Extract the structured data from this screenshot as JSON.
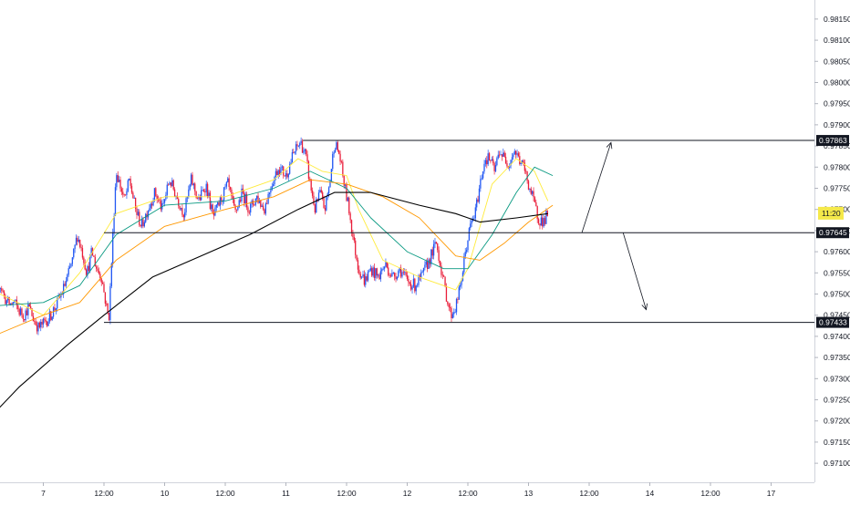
{
  "chart_data": {
    "type": "candlestick",
    "colors": {
      "up": "#2157f3",
      "down": "#e91e3a",
      "ma_fast": "#ffeb3b",
      "ma_mid": "#089981",
      "ma_slow": "#ff9800",
      "ma_long": "#000000",
      "label_bg": "#131722",
      "price_badge": "#f5e94a"
    },
    "y_axis": {
      "ylim": [
        0.97055,
        0.98195
      ],
      "ticks": [
        "0.98150",
        "0.98100",
        "0.98050",
        "0.98000",
        "0.97950",
        "0.97900",
        "0.97850",
        "0.97800",
        "0.97750",
        "0.97700",
        "0.97650",
        "0.97600",
        "0.97550",
        "0.97500",
        "0.97450",
        "0.97400",
        "0.97350",
        "0.97300",
        "0.97250",
        "0.97200",
        "0.97150",
        "0.97100"
      ]
    },
    "x_axis": {
      "ticks": [
        {
          "label": "7",
          "t": 0.5
        },
        {
          "label": "12:00",
          "t": 1.0
        },
        {
          "label": "10",
          "t": 1.5
        },
        {
          "label": "12:00",
          "t": 2.0
        },
        {
          "label": "11",
          "t": 2.5
        },
        {
          "label": "12:00",
          "t": 3.0
        },
        {
          "label": "12",
          "t": 3.5
        },
        {
          "label": "12:00",
          "t": 4.0
        },
        {
          "label": "13",
          "t": 4.5
        },
        {
          "label": "12:00",
          "t": 5.0
        },
        {
          "label": "14",
          "t": 5.5
        },
        {
          "label": "12:00",
          "t": 6.0
        },
        {
          "label": "17",
          "t": 6.5
        }
      ]
    },
    "levels": [
      {
        "price": 0.97863,
        "label": "0.97863",
        "t_start": 2.64
      },
      {
        "price": 0.97645,
        "label": "0.97645",
        "t_start": 1.0
      },
      {
        "price": 0.97433,
        "label": "0.97433",
        "t_start": 1.0
      }
    ],
    "current_price_label": "11:20",
    "current_price": 0.97691,
    "projections": [
      {
        "from_t": 4.94,
        "from_p": 0.97645,
        "to_t": 5.18,
        "to_p": 0.97858
      },
      {
        "from_t": 5.28,
        "from_p": 0.97645,
        "to_t": 5.47,
        "to_p": 0.97463
      }
    ],
    "anchors": [
      {
        "t": 0.0,
        "p": 0.9752
      },
      {
        "t": 0.03,
        "p": 0.9756
      },
      {
        "t": 0.06,
        "p": 0.97545
      },
      {
        "t": 0.09,
        "p": 0.97565
      },
      {
        "t": 0.12,
        "p": 0.9753
      },
      {
        "t": 0.15,
        "p": 0.9752
      },
      {
        "t": 0.18,
        "p": 0.9749
      },
      {
        "t": 0.22,
        "p": 0.97475
      },
      {
        "t": 0.26,
        "p": 0.9748
      },
      {
        "t": 0.3,
        "p": 0.9746
      },
      {
        "t": 0.34,
        "p": 0.9745
      },
      {
        "t": 0.38,
        "p": 0.9747
      },
      {
        "t": 0.42,
        "p": 0.9744
      },
      {
        "t": 0.46,
        "p": 0.9742
      },
      {
        "t": 0.5,
        "p": 0.9743
      },
      {
        "t": 0.55,
        "p": 0.97445
      },
      {
        "t": 0.6,
        "p": 0.9747
      },
      {
        "t": 0.65,
        "p": 0.975
      },
      {
        "t": 0.7,
        "p": 0.9754
      },
      {
        "t": 0.74,
        "p": 0.9758
      },
      {
        "t": 0.78,
        "p": 0.9764
      },
      {
        "t": 0.82,
        "p": 0.976
      },
      {
        "t": 0.86,
        "p": 0.9755
      },
      {
        "t": 0.9,
        "p": 0.976
      },
      {
        "t": 0.94,
        "p": 0.9756
      },
      {
        "t": 0.98,
        "p": 0.9754
      },
      {
        "t": 1.02,
        "p": 0.9747
      },
      {
        "t": 1.04,
        "p": 0.9744
      },
      {
        "t": 1.06,
        "p": 0.9756
      },
      {
        "t": 1.08,
        "p": 0.9768
      },
      {
        "t": 1.1,
        "p": 0.9779
      },
      {
        "t": 1.13,
        "p": 0.9776
      },
      {
        "t": 1.17,
        "p": 0.9772
      },
      {
        "t": 1.21,
        "p": 0.9777
      },
      {
        "t": 1.26,
        "p": 0.977
      },
      {
        "t": 1.31,
        "p": 0.9766
      },
      {
        "t": 1.36,
        "p": 0.977
      },
      {
        "t": 1.42,
        "p": 0.9774
      },
      {
        "t": 1.48,
        "p": 0.977
      },
      {
        "t": 1.54,
        "p": 0.9777
      },
      {
        "t": 1.6,
        "p": 0.9773
      },
      {
        "t": 1.66,
        "p": 0.9769
      },
      {
        "t": 1.72,
        "p": 0.9777
      },
      {
        "t": 1.78,
        "p": 0.9772
      },
      {
        "t": 1.84,
        "p": 0.9776
      },
      {
        "t": 1.9,
        "p": 0.9768
      },
      {
        "t": 1.96,
        "p": 0.9772
      },
      {
        "t": 2.02,
        "p": 0.9776
      },
      {
        "t": 2.08,
        "p": 0.9769
      },
      {
        "t": 2.14,
        "p": 0.9774
      },
      {
        "t": 2.2,
        "p": 0.977
      },
      {
        "t": 2.26,
        "p": 0.9773
      },
      {
        "t": 2.32,
        "p": 0.977
      },
      {
        "t": 2.38,
        "p": 0.9776
      },
      {
        "t": 2.44,
        "p": 0.978
      },
      {
        "t": 2.5,
        "p": 0.9778
      },
      {
        "t": 2.56,
        "p": 0.9783
      },
      {
        "t": 2.62,
        "p": 0.9786
      },
      {
        "t": 2.66,
        "p": 0.9783
      },
      {
        "t": 2.7,
        "p": 0.9776
      },
      {
        "t": 2.74,
        "p": 0.977
      },
      {
        "t": 2.78,
        "p": 0.9774
      },
      {
        "t": 2.82,
        "p": 0.977
      },
      {
        "t": 2.86,
        "p": 0.9776
      },
      {
        "t": 2.9,
        "p": 0.9786
      },
      {
        "t": 2.94,
        "p": 0.9783
      },
      {
        "t": 2.98,
        "p": 0.9776
      },
      {
        "t": 3.02,
        "p": 0.977
      },
      {
        "t": 3.06,
        "p": 0.9762
      },
      {
        "t": 3.1,
        "p": 0.9756
      },
      {
        "t": 3.15,
        "p": 0.9753
      },
      {
        "t": 3.2,
        "p": 0.9756
      },
      {
        "t": 3.26,
        "p": 0.9754
      },
      {
        "t": 3.32,
        "p": 0.9757
      },
      {
        "t": 3.38,
        "p": 0.9754
      },
      {
        "t": 3.44,
        "p": 0.9756
      },
      {
        "t": 3.5,
        "p": 0.9753
      },
      {
        "t": 3.56,
        "p": 0.9752
      },
      {
        "t": 3.62,
        "p": 0.9754
      },
      {
        "t": 3.68,
        "p": 0.9758
      },
      {
        "t": 3.74,
        "p": 0.9762
      },
      {
        "t": 3.78,
        "p": 0.9756
      },
      {
        "t": 3.82,
        "p": 0.975
      },
      {
        "t": 3.86,
        "p": 0.9745
      },
      {
        "t": 3.9,
        "p": 0.9747
      },
      {
        "t": 3.94,
        "p": 0.9752
      },
      {
        "t": 3.98,
        "p": 0.976
      },
      {
        "t": 4.02,
        "p": 0.9766
      },
      {
        "t": 4.06,
        "p": 0.9769
      },
      {
        "t": 4.1,
        "p": 0.9776
      },
      {
        "t": 4.14,
        "p": 0.9782
      },
      {
        "t": 4.18,
        "p": 0.9782
      },
      {
        "t": 4.22,
        "p": 0.9779
      },
      {
        "t": 4.26,
        "p": 0.9784
      },
      {
        "t": 4.3,
        "p": 0.9782
      },
      {
        "t": 4.34,
        "p": 0.9781
      },
      {
        "t": 4.38,
        "p": 0.9784
      },
      {
        "t": 4.42,
        "p": 0.9782
      },
      {
        "t": 4.46,
        "p": 0.978
      },
      {
        "t": 4.5,
        "p": 0.9776
      },
      {
        "t": 4.54,
        "p": 0.9772
      },
      {
        "t": 4.58,
        "p": 0.9768
      },
      {
        "t": 4.62,
        "p": 0.9767
      },
      {
        "t": 4.66,
        "p": 0.9769
      }
    ],
    "ma_fast": [
      [
        0.0,
        0.9752
      ],
      [
        0.5,
        0.9745
      ],
      [
        0.8,
        0.9755
      ],
      [
        1.1,
        0.9769
      ],
      [
        1.5,
        0.9773
      ],
      [
        2.0,
        0.9773
      ],
      [
        2.4,
        0.9777
      ],
      [
        2.6,
        0.9782
      ],
      [
        2.8,
        0.9779
      ],
      [
        3.0,
        0.9778
      ],
      [
        3.1,
        0.977
      ],
      [
        3.3,
        0.9758
      ],
      [
        3.6,
        0.9754
      ],
      [
        3.9,
        0.9751
      ],
      [
        4.0,
        0.9756
      ],
      [
        4.2,
        0.9776
      ],
      [
        4.4,
        0.9782
      ],
      [
        4.55,
        0.9779
      ],
      [
        4.66,
        0.9772
      ]
    ],
    "ma_mid": [
      [
        0.0,
        0.9747
      ],
      [
        0.5,
        0.9748
      ],
      [
        0.8,
        0.9752
      ],
      [
        1.1,
        0.9764
      ],
      [
        1.5,
        0.9771
      ],
      [
        2.0,
        0.9772
      ],
      [
        2.4,
        0.9775
      ],
      [
        2.7,
        0.9779
      ],
      [
        3.0,
        0.9775
      ],
      [
        3.2,
        0.9768
      ],
      [
        3.5,
        0.976
      ],
      [
        3.8,
        0.9756
      ],
      [
        4.0,
        0.9756
      ],
      [
        4.2,
        0.9764
      ],
      [
        4.4,
        0.9774
      ],
      [
        4.55,
        0.978
      ],
      [
        4.7,
        0.9778
      ]
    ],
    "ma_slow": [
      [
        0.0,
        0.9739
      ],
      [
        0.5,
        0.9745
      ],
      [
        0.8,
        0.9748
      ],
      [
        1.1,
        0.9758
      ],
      [
        1.5,
        0.9766
      ],
      [
        2.0,
        0.977
      ],
      [
        2.4,
        0.9773
      ],
      [
        2.7,
        0.9777
      ],
      [
        3.0,
        0.9776
      ],
      [
        3.3,
        0.9773
      ],
      [
        3.6,
        0.9768
      ],
      [
        3.9,
        0.9759
      ],
      [
        4.1,
        0.9758
      ],
      [
        4.3,
        0.9762
      ],
      [
        4.5,
        0.9767
      ],
      [
        4.7,
        0.9771
      ]
    ],
    "ma_long": [
      [
        0.0,
        0.9719
      ],
      [
        0.3,
        0.9728
      ],
      [
        0.7,
        0.9738
      ],
      [
        1.0,
        0.9745
      ],
      [
        1.4,
        0.9754
      ],
      [
        1.8,
        0.9759
      ],
      [
        2.2,
        0.9764
      ],
      [
        2.6,
        0.977
      ],
      [
        2.9,
        0.9774
      ],
      [
        3.2,
        0.9774
      ],
      [
        3.6,
        0.9771
      ],
      [
        3.9,
        0.9769
      ],
      [
        4.1,
        0.9767
      ],
      [
        4.4,
        0.9768
      ],
      [
        4.66,
        0.9769
      ]
    ]
  }
}
